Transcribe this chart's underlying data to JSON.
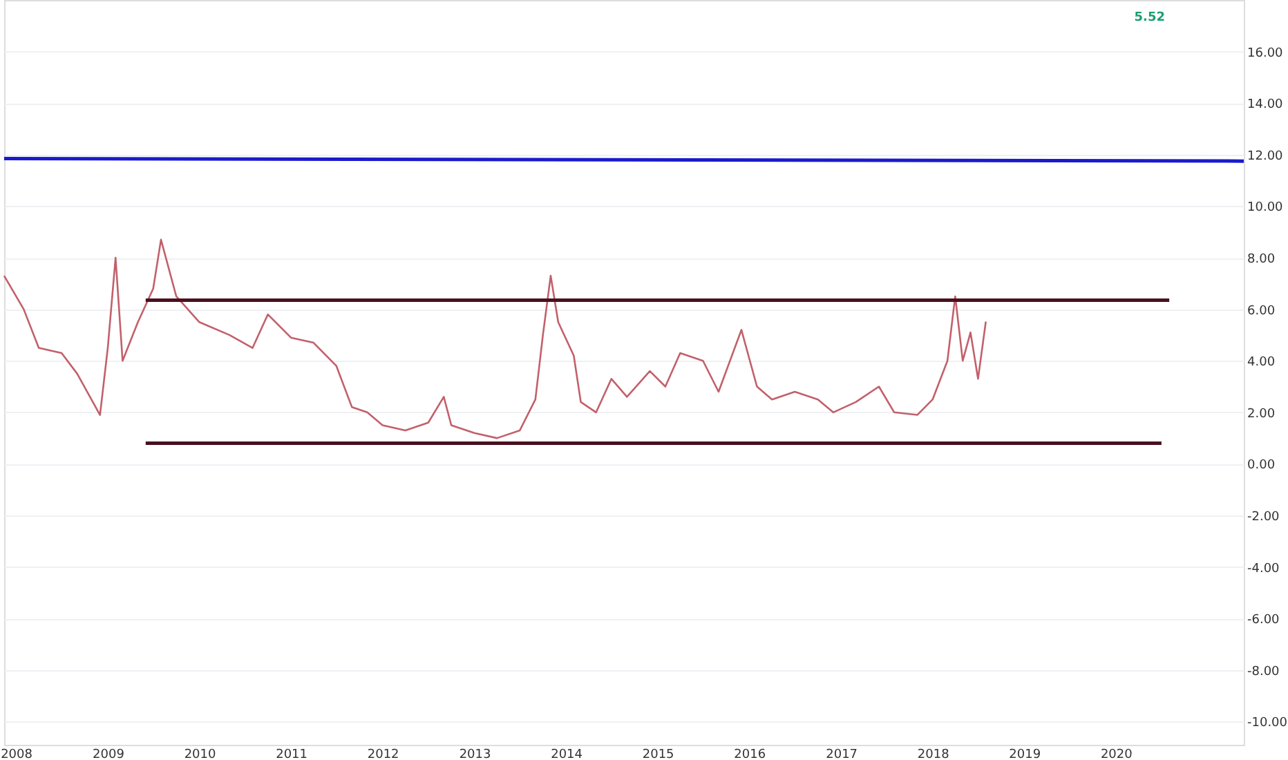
{
  "chart_data": {
    "type": "line",
    "x": [
      "2007-11-15",
      "2008-02",
      "2008-04",
      "2008-07",
      "2008-09",
      "2008-12",
      "2009-01",
      "2009-02",
      "2009-03",
      "2009-05",
      "2009-07",
      "2009-08",
      "2009-10",
      "2010-01",
      "2010-05",
      "2010-08",
      "2010-10",
      "2011-01",
      "2011-04",
      "2011-07",
      "2011-09",
      "2011-11",
      "2012-01",
      "2012-04",
      "2012-07",
      "2012-09",
      "2012-10",
      "2013-01",
      "2013-04",
      "2013-07",
      "2013-09",
      "2013-10",
      "2013-11",
      "2013-12",
      "2014-02",
      "2014-03",
      "2014-05",
      "2014-07",
      "2014-09",
      "2014-12",
      "2015-02",
      "2015-04",
      "2015-07",
      "2015-09",
      "2015-12",
      "2016-02",
      "2016-04",
      "2016-07",
      "2016-10",
      "2016-12",
      "2017-03",
      "2017-06",
      "2017-08",
      "2017-11",
      "2018-01",
      "2018-03",
      "2018-04",
      "2018-05",
      "2018-06",
      "2018-07",
      "2018-08"
    ],
    "series": [
      {
        "color": "#c2606b",
        "values": [
          7.3,
          6.0,
          4.5,
          4.3,
          3.5,
          1.9,
          4.5,
          8.0,
          4.0,
          5.5,
          6.8,
          8.7,
          6.5,
          5.5,
          5.0,
          4.5,
          5.8,
          4.9,
          4.7,
          3.8,
          2.2,
          2.0,
          1.5,
          1.3,
          1.6,
          2.6,
          1.5,
          1.2,
          1.0,
          1.3,
          2.5,
          5.0,
          7.3,
          5.5,
          4.2,
          2.4,
          2.0,
          3.3,
          2.6,
          3.6,
          3.0,
          4.3,
          4.0,
          2.8,
          5.2,
          3.0,
          2.5,
          2.8,
          2.5,
          2.0,
          2.4,
          3.0,
          2.0,
          1.9,
          2.5,
          4.0,
          6.5,
          4.0,
          5.1,
          3.3,
          5.52
        ]
      },
      {
        "type": "line",
        "color": "#1a1acc",
        "x": [
          "2007-11-15",
          "2021-05-25"
        ],
        "values": [
          11.85,
          11.75
        ]
      },
      {
        "type": "line",
        "color": "#4a1020",
        "x": [
          "2009-06",
          "2020-08"
        ],
        "values": [
          6.35,
          6.35
        ]
      },
      {
        "type": "line",
        "color": "#4a1020",
        "x": [
          "2009-06",
          "2020-07"
        ],
        "values": [
          0.8,
          0.8
        ]
      }
    ],
    "annotations": [
      "5.52"
    ],
    "xlim": [
      "2007-11-15",
      "2021-05-25"
    ],
    "xticks": [
      "2008",
      "2009",
      "2010",
      "2011",
      "2012",
      "2013",
      "2014",
      "2015",
      "2016",
      "2017",
      "2018",
      "2019",
      "2020"
    ],
    "ylim": [
      -10.9,
      18
    ],
    "yticks": [
      {
        "value": 16,
        "label": "16.00"
      },
      {
        "value": 14,
        "label": "14.00"
      },
      {
        "value": 12,
        "label": "12.00"
      },
      {
        "value": 10,
        "label": "10.00"
      },
      {
        "value": 8,
        "label": "8.00"
      },
      {
        "value": 6,
        "label": "6.00"
      },
      {
        "value": 4,
        "label": "4.00"
      },
      {
        "value": 2,
        "label": "2.00"
      },
      {
        "value": 0,
        "label": "0.00"
      },
      {
        "value": -2,
        "label": "-2.00"
      },
      {
        "value": -4,
        "label": "-4.00"
      },
      {
        "value": -6,
        "label": "-6.00"
      },
      {
        "value": -8,
        "label": "-8.00"
      },
      {
        "value": -10,
        "label": "-10.00"
      }
    ],
    "grid": "y"
  }
}
